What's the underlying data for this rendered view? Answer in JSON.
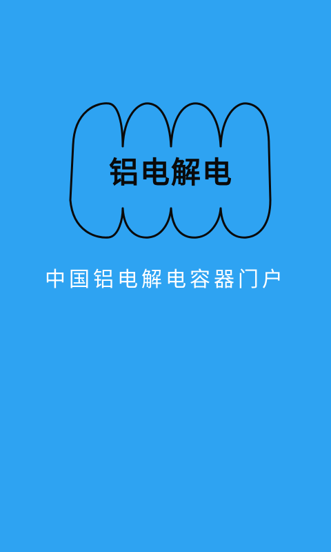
{
  "splash": {
    "logo_text": "铝电解电",
    "tagline": "中国铝电解电容器门户"
  },
  "colors": {
    "background": "#2ea3f2",
    "logo_stroke": "#0a0a0a",
    "tagline": "#ffffff"
  },
  "icons": {
    "logo": "capacitor-coil-icon"
  }
}
